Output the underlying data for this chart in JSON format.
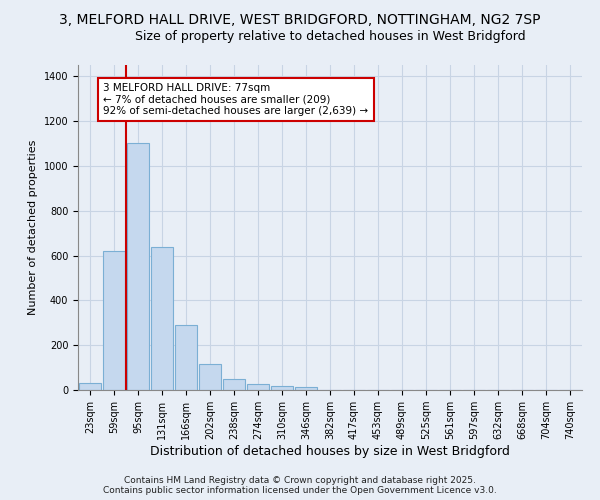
{
  "title1": "3, MELFORD HALL DRIVE, WEST BRIDGFORD, NOTTINGHAM, NG2 7SP",
  "title2": "Size of property relative to detached houses in West Bridgford",
  "xlabel": "Distribution of detached houses by size in West Bridgford",
  "ylabel": "Number of detached properties",
  "categories": [
    "23sqm",
    "59sqm",
    "95sqm",
    "131sqm",
    "166sqm",
    "202sqm",
    "238sqm",
    "274sqm",
    "310sqm",
    "346sqm",
    "382sqm",
    "417sqm",
    "453sqm",
    "489sqm",
    "525sqm",
    "561sqm",
    "597sqm",
    "632sqm",
    "668sqm",
    "704sqm",
    "740sqm"
  ],
  "values": [
    30,
    620,
    1100,
    640,
    290,
    115,
    50,
    25,
    20,
    12,
    0,
    0,
    0,
    0,
    0,
    0,
    0,
    0,
    0,
    0,
    0
  ],
  "bar_color": "#c5d8ee",
  "bar_edge_color": "#7bafd4",
  "vline_color": "#cc0000",
  "vline_x_index": 1.5,
  "annotation_text": "3 MELFORD HALL DRIVE: 77sqm\n← 7% of detached houses are smaller (209)\n92% of semi-detached houses are larger (2,639) →",
  "annotation_box_color": "white",
  "annotation_box_edge": "#cc0000",
  "ylim": [
    0,
    1450
  ],
  "yticks": [
    0,
    200,
    400,
    600,
    800,
    1000,
    1200,
    1400
  ],
  "bg_color": "#e8eef6",
  "grid_color": "#c8d4e4",
  "footnote": "Contains HM Land Registry data © Crown copyright and database right 2025.\nContains public sector information licensed under the Open Government Licence v3.0.",
  "title1_fontsize": 10,
  "title2_fontsize": 9,
  "xlabel_fontsize": 9,
  "ylabel_fontsize": 8,
  "tick_fontsize": 7,
  "annotation_fontsize": 7.5,
  "footnote_fontsize": 6.5
}
